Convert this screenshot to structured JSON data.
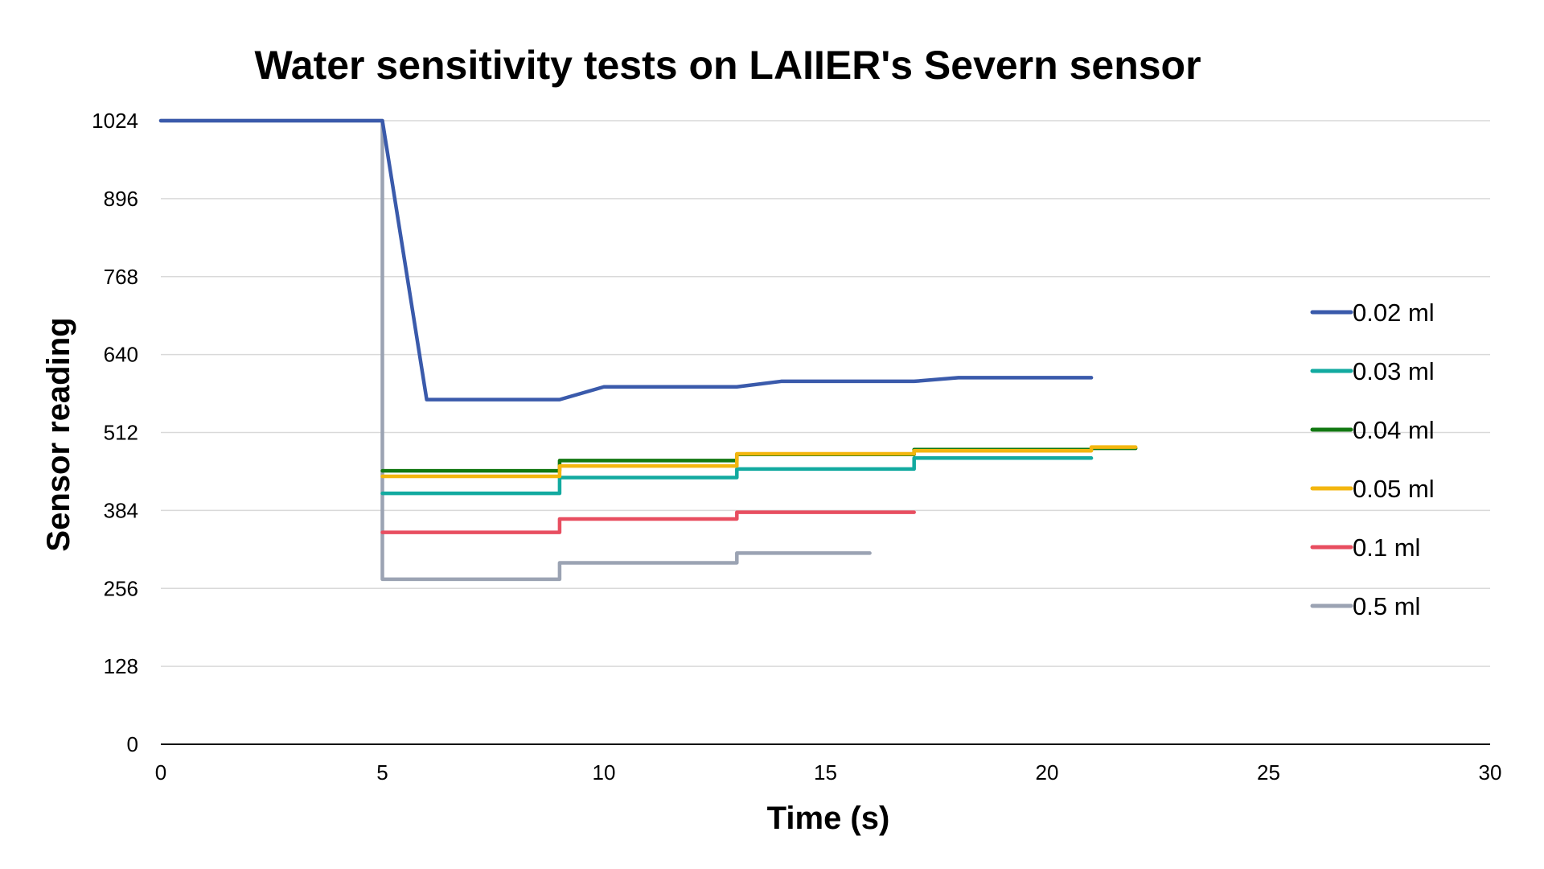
{
  "chart_data": {
    "type": "line",
    "title": "Water sensitivity tests on LAIIER's Severn sensor",
    "xlabel": "Time (s)",
    "ylabel": "Sensor reading",
    "xlim": [
      0,
      30
    ],
    "ylim": [
      0,
      1024
    ],
    "x_ticks": [
      "0",
      "5",
      "10",
      "15",
      "20",
      "25",
      "30"
    ],
    "y_ticks": [
      "0",
      "128",
      "256",
      "384",
      "512",
      "640",
      "768",
      "896",
      "1024"
    ],
    "grid": "horizontal",
    "legend_position": "right",
    "series": [
      {
        "name": "0.02 ml",
        "color": "#3a5aab",
        "step": false,
        "points": [
          [
            0,
            1024
          ],
          [
            5,
            1024
          ],
          [
            6,
            566
          ],
          [
            9,
            566
          ],
          [
            10,
            587
          ],
          [
            13,
            587
          ],
          [
            14,
            596
          ],
          [
            17,
            596
          ],
          [
            18,
            602
          ],
          [
            21,
            602
          ]
        ]
      },
      {
        "name": "0.03 ml",
        "color": "#12aaa0",
        "step": true,
        "points": [
          [
            5,
            412
          ],
          [
            9,
            438
          ],
          [
            13,
            452
          ],
          [
            17,
            470
          ],
          [
            21,
            470
          ]
        ]
      },
      {
        "name": "0.04 ml",
        "color": "#127812",
        "step": true,
        "points": [
          [
            5,
            449
          ],
          [
            9,
            466
          ],
          [
            13,
            476
          ],
          [
            17,
            484
          ],
          [
            21,
            486
          ],
          [
            22,
            486
          ]
        ]
      },
      {
        "name": "0.05 ml",
        "color": "#f3b60e",
        "step": true,
        "points": [
          [
            5,
            440
          ],
          [
            9,
            457
          ],
          [
            13,
            477
          ],
          [
            17,
            482
          ],
          [
            21,
            488
          ],
          [
            22,
            488
          ]
        ]
      },
      {
        "name": "0.1 ml",
        "color": "#e84e60",
        "step": true,
        "points": [
          [
            5,
            348
          ],
          [
            9,
            370
          ],
          [
            13,
            381
          ],
          [
            17,
            381
          ]
        ]
      },
      {
        "name": "0.5 ml",
        "color": "#9ba3b3",
        "step": true,
        "points": [
          [
            0,
            1024
          ],
          [
            5,
            1024
          ],
          [
            5,
            271
          ],
          [
            9,
            298
          ],
          [
            13,
            314
          ],
          [
            16,
            314
          ]
        ]
      }
    ]
  }
}
